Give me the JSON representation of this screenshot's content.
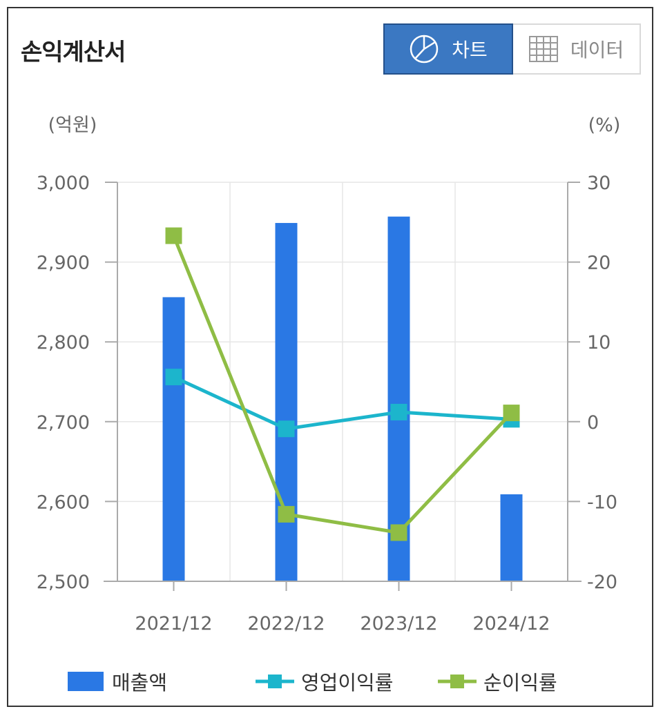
{
  "header": {
    "title": "손익계산서",
    "chart_button_label": "차트",
    "data_button_label": "데이터"
  },
  "colors": {
    "revenue": "#2a78e4",
    "operating_margin": "#1cb5cc",
    "net_margin": "#8fbd45",
    "toggle_active": "#3b78c2"
  },
  "chart_data": {
    "type": "bar+line",
    "categories": [
      "2021/12",
      "2022/12",
      "2023/12",
      "2024/12"
    ],
    "y_left_unit": "(억원)",
    "y_right_unit": "(%)",
    "y_left_ticks": [
      "3,000",
      "2,900",
      "2,800",
      "2,700",
      "2,600",
      "2,500"
    ],
    "y_right_ticks": [
      "30",
      "20",
      "10",
      "0",
      "-10",
      "-20"
    ],
    "y_left_range": [
      2500,
      3000
    ],
    "y_right_range": [
      -20,
      30
    ],
    "grid": true,
    "legend_position": "bottom",
    "series": [
      {
        "name": "매출액",
        "type": "bar",
        "axis": "left",
        "values": [
          2856,
          2949,
          2957,
          2609
        ]
      },
      {
        "name": "영업이익률",
        "type": "line",
        "axis": "right",
        "values": [
          5.6,
          -0.9,
          1.2,
          0.3
        ]
      },
      {
        "name": "순이익률",
        "type": "line",
        "axis": "right",
        "values": [
          23.3,
          -11.6,
          -13.9,
          1.1
        ]
      }
    ]
  }
}
